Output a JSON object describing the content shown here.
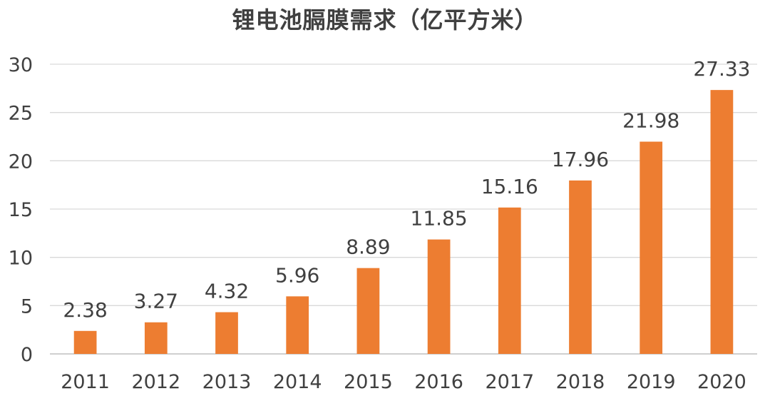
{
  "chart_data": {
    "type": "bar",
    "title": "锂电池膈膜需求（亿平方米）",
    "categories": [
      "2011",
      "2012",
      "2013",
      "2014",
      "2015",
      "2016",
      "2017",
      "2018",
      "2019",
      "2020"
    ],
    "values": [
      2.38,
      3.27,
      4.32,
      5.96,
      8.89,
      11.85,
      15.16,
      17.96,
      21.98,
      27.33
    ],
    "value_labels": [
      "2.38",
      "3.27",
      "4.32",
      "5.96",
      "8.89",
      "11.85",
      "15.16",
      "17.96",
      "21.98",
      "27.33"
    ],
    "y_ticks": [
      0,
      5,
      10,
      15,
      20,
      25,
      30
    ],
    "y_tick_labels": [
      "0",
      "5",
      "10",
      "15",
      "20",
      "25",
      "30"
    ],
    "ylim": [
      0,
      30
    ],
    "xlabel": "",
    "ylabel": "",
    "grid": true,
    "legend": "none",
    "bar_color": "#ED7D31"
  }
}
